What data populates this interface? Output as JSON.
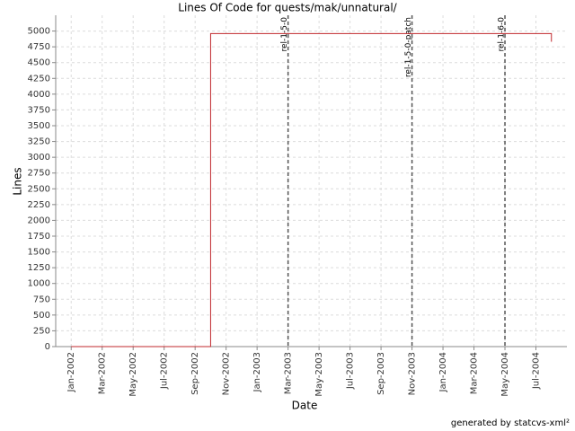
{
  "chart_data": {
    "type": "line",
    "title": "Lines Of Code for quests/mak/unnatural/",
    "x_label": "Date",
    "y_label": "Lines",
    "footer": "generated by statcvs-xml²",
    "step": "post",
    "grid": true,
    "xlim": [
      "2001-12",
      "2004-09"
    ],
    "xticks": [
      {
        "value": "2002-01",
        "label": "Jan-2002"
      },
      {
        "value": "2002-03",
        "label": "Mar-2002"
      },
      {
        "value": "2002-05",
        "label": "May-2002"
      },
      {
        "value": "2002-07",
        "label": "Jul-2002"
      },
      {
        "value": "2002-09",
        "label": "Sep-2002"
      },
      {
        "value": "2002-11",
        "label": "Nov-2002"
      },
      {
        "value": "2003-01",
        "label": "Jan-2003"
      },
      {
        "value": "2003-03",
        "label": "Mar-2003"
      },
      {
        "value": "2003-05",
        "label": "May-2003"
      },
      {
        "value": "2003-07",
        "label": "Jul-2003"
      },
      {
        "value": "2003-09",
        "label": "Sep-2003"
      },
      {
        "value": "2003-11",
        "label": "Nov-2003"
      },
      {
        "value": "2004-01",
        "label": "Jan-2004"
      },
      {
        "value": "2004-03",
        "label": "Mar-2004"
      },
      {
        "value": "2004-05",
        "label": "May-2004"
      },
      {
        "value": "2004-07",
        "label": "Jul-2004"
      }
    ],
    "ylim": [
      0,
      5250
    ],
    "yticks": [
      0,
      250,
      500,
      750,
      1000,
      1250,
      1500,
      1750,
      2000,
      2250,
      2500,
      2750,
      3000,
      3250,
      3500,
      3750,
      4000,
      4250,
      4500,
      4750,
      5000
    ],
    "x": [
      "2002-01",
      "2002-10",
      "2004-08"
    ],
    "series": [
      {
        "name": "Lines",
        "color": "#c0282d",
        "values": [
          0,
          4960,
          4830
        ]
      }
    ],
    "markers": [
      {
        "x": "2003-03",
        "label": "rel-1-5-0"
      },
      {
        "x": "2003-11",
        "label": "rel-1-5-0-patch"
      },
      {
        "x": "2004-05",
        "label": "rel-1-6-0"
      }
    ]
  }
}
